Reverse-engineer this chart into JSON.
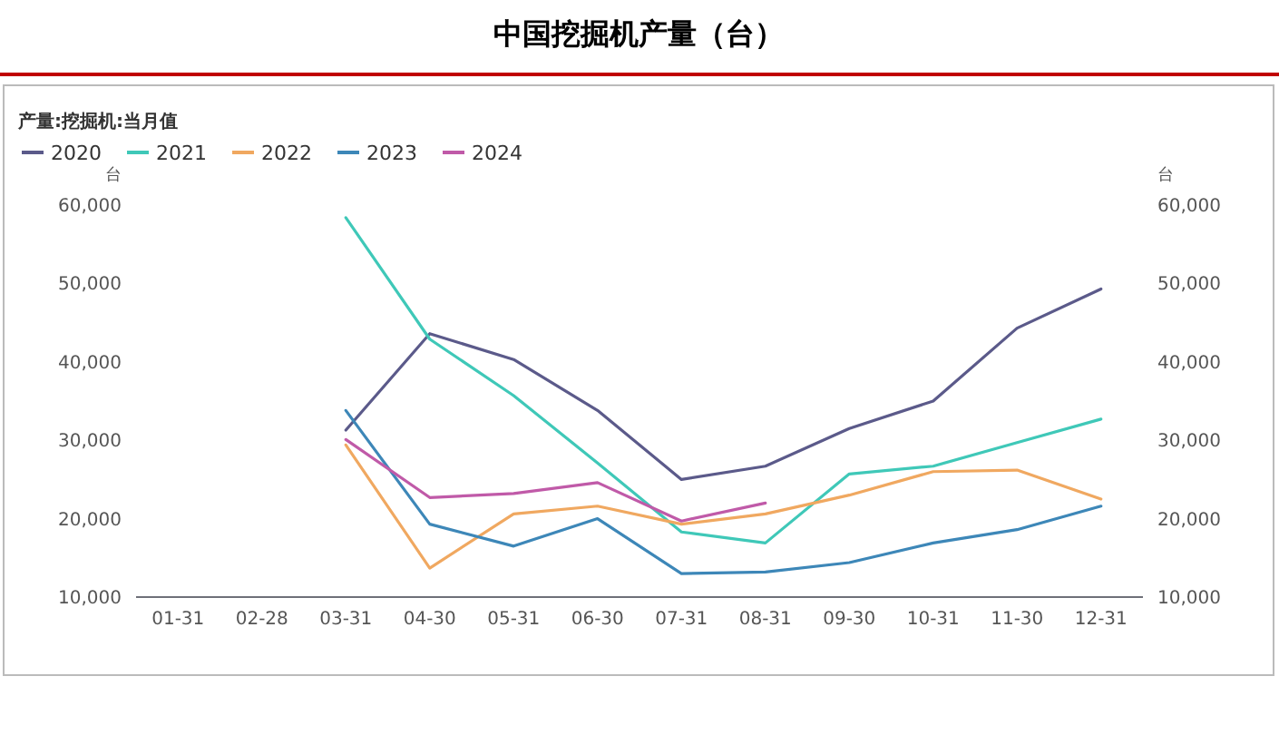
{
  "chart_data": {
    "type": "line",
    "title": "中国挖掘机产量（台）",
    "subtitle": "产量:挖掘机:当月值",
    "ylabel": "台",
    "y2label": "台",
    "categories": [
      "01-31",
      "02-28",
      "03-31",
      "04-30",
      "05-31",
      "06-30",
      "07-31",
      "08-31",
      "09-30",
      "10-31",
      "11-30",
      "12-31"
    ],
    "ylim": [
      10000,
      60000
    ],
    "yticks": [
      {
        "value": 10000,
        "label": "10,000"
      },
      {
        "value": 20000,
        "label": "20,000"
      },
      {
        "value": 30000,
        "label": "30,000"
      },
      {
        "value": 40000,
        "label": "40,000"
      },
      {
        "value": 50000,
        "label": "50,000"
      },
      {
        "value": 60000,
        "label": "60,000"
      }
    ],
    "y2lim": [
      10000,
      60000
    ],
    "y2ticks": [
      {
        "value": 10000,
        "label": "10,000"
      },
      {
        "value": 20000,
        "label": "20,000"
      },
      {
        "value": 30000,
        "label": "30,000"
      },
      {
        "value": 40000,
        "label": "40,000"
      },
      {
        "value": 50000,
        "label": "50,000"
      },
      {
        "value": 60000,
        "label": "60,000"
      }
    ],
    "legend": "top left",
    "marker": "none",
    "line_style": "solid",
    "series": [
      {
        "name": "2020",
        "color": "#5b5a8a",
        "values": [
          null,
          null,
          31300,
          43600,
          40300,
          33800,
          25000,
          26700,
          31500,
          35000,
          44300,
          49300
        ]
      },
      {
        "name": "2021",
        "color": "#3fc8b8",
        "values": [
          null,
          null,
          58400,
          42900,
          35700,
          27100,
          18300,
          16900,
          25700,
          26700,
          29700,
          32700
        ]
      },
      {
        "name": "2022",
        "color": "#f0a860",
        "values": [
          null,
          null,
          29400,
          13700,
          20600,
          21600,
          19300,
          20600,
          23000,
          26000,
          26200,
          22500
        ]
      },
      {
        "name": "2023",
        "color": "#3d87b8",
        "values": [
          null,
          null,
          33800,
          19300,
          16500,
          20000,
          13000,
          13200,
          14400,
          16900,
          18600,
          21600
        ]
      },
      {
        "name": "2024",
        "color": "#c05aa8",
        "values": [
          null,
          null,
          30100,
          22700,
          23200,
          24600,
          19700,
          22000,
          null,
          null,
          null,
          null
        ]
      }
    ]
  }
}
